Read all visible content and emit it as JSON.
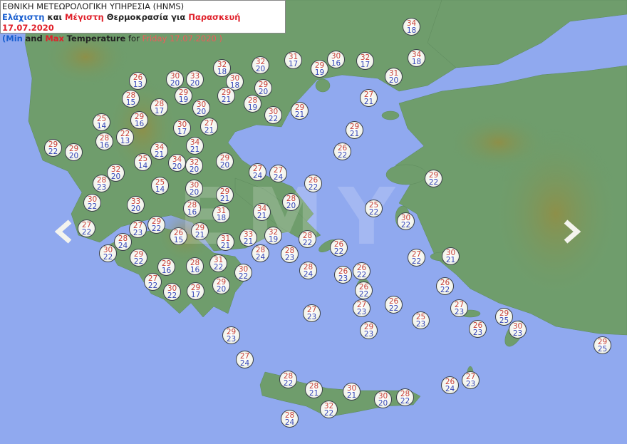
{
  "header": {
    "agency": "ΕΘΝΙΚΗ ΜΕΤΕΩΡΟΛΟΓΙΚΗ ΥΠΗΡΕΣΙΑ (HNMS)",
    "gr_min": "Ελάχιστη",
    "gr_and": "και",
    "gr_max": "Μέγιστη",
    "gr_rest": "Θερμοκρασία για",
    "gr_day": "Παρασκευή 17.07.2020",
    "en_open": "(",
    "en_min": "Min",
    "en_and": "and",
    "en_max": "Max",
    "en_rest": "Temperature",
    "en_for": "for",
    "en_day": "Friday 17.07.2020 )"
  },
  "watermark": "EMY",
  "colors": {
    "max": "#c8423a",
    "min": "#3646b8",
    "sea": "#90a9ef",
    "land": "#6f9d6c"
  },
  "navigation": {
    "prev": "chevron-left-icon",
    "next": "chevron-right-icon"
  },
  "stations": [
    {
      "max": 34,
      "min": 18
    },
    {
      "max": 34,
      "min": 18
    },
    {
      "max": 32,
      "min": 18
    },
    {
      "max": 32,
      "min": 20
    },
    {
      "max": 31,
      "min": 17
    },
    {
      "max": 30,
      "min": 16
    },
    {
      "max": 29,
      "min": 19
    },
    {
      "max": 32,
      "min": 17
    },
    {
      "max": 31,
      "min": 20
    },
    {
      "max": 26,
      "min": 13
    },
    {
      "max": 30,
      "min": 20
    },
    {
      "max": 33,
      "min": 20
    },
    {
      "max": 30,
      "min": 18
    },
    {
      "max": 29,
      "min": 20
    },
    {
      "max": 28,
      "min": 15
    },
    {
      "max": 29,
      "min": 19
    },
    {
      "max": 29,
      "min": 21
    },
    {
      "max": 28,
      "min": 19
    },
    {
      "max": 27,
      "min": 21
    },
    {
      "max": 28,
      "min": 17
    },
    {
      "max": 30,
      "min": 20
    },
    {
      "max": 30,
      "min": 22
    },
    {
      "max": 29,
      "min": 21
    },
    {
      "max": 25,
      "min": 14
    },
    {
      "max": 29,
      "min": 16
    },
    {
      "max": 30,
      "min": 17
    },
    {
      "max": 27,
      "min": 21
    },
    {
      "max": 29,
      "min": 21
    },
    {
      "max": 28,
      "min": 16
    },
    {
      "max": 22,
      "min": 13
    },
    {
      "max": 29,
      "min": 22
    },
    {
      "max": 29,
      "min": 20
    },
    {
      "max": 34,
      "min": 21
    },
    {
      "max": 34,
      "min": 21
    },
    {
      "max": 26,
      "min": 22
    },
    {
      "max": 25,
      "min": 14
    },
    {
      "max": 34,
      "min": 20
    },
    {
      "max": 32,
      "min": 20
    },
    {
      "max": 29,
      "min": 20
    },
    {
      "max": 27,
      "min": 24
    },
    {
      "max": 27,
      "min": 24
    },
    {
      "max": 26,
      "min": 22
    },
    {
      "max": 29,
      "min": 22
    },
    {
      "max": 32,
      "min": 20
    },
    {
      "max": 28,
      "min": 23
    },
    {
      "max": 25,
      "min": 14
    },
    {
      "max": 30,
      "min": 20
    },
    {
      "max": 30,
      "min": 22
    },
    {
      "max": 33,
      "min": 20
    },
    {
      "max": 28,
      "min": 16
    },
    {
      "max": 29,
      "min": 21
    },
    {
      "max": 31,
      "min": 18
    },
    {
      "max": 34,
      "min": 21
    },
    {
      "max": 28,
      "min": 20
    },
    {
      "max": 25,
      "min": 22
    },
    {
      "max": 30,
      "min": 22
    },
    {
      "max": 27,
      "min": 22
    },
    {
      "max": 27,
      "min": 23
    },
    {
      "max": 29,
      "min": 22
    },
    {
      "max": 26,
      "min": 15
    },
    {
      "max": 29,
      "min": 21
    },
    {
      "max": 28,
      "min": 24
    },
    {
      "max": 30,
      "min": 22
    },
    {
      "max": 31,
      "min": 21
    },
    {
      "max": 33,
      "min": 21
    },
    {
      "max": 32,
      "min": 19
    },
    {
      "max": 28,
      "min": 22
    },
    {
      "max": 29,
      "min": 22
    },
    {
      "max": 28,
      "min": 24
    },
    {
      "max": 28,
      "min": 23
    },
    {
      "max": 26,
      "min": 22
    },
    {
      "max": 27,
      "min": 22
    },
    {
      "max": 30,
      "min": 21
    },
    {
      "max": 29,
      "min": 16
    },
    {
      "max": 28,
      "min": 16
    },
    {
      "max": 31,
      "min": 22
    },
    {
      "max": 30,
      "min": 22
    },
    {
      "max": 28,
      "min": 24
    },
    {
      "max": 26,
      "min": 23
    },
    {
      "max": 26,
      "min": 22
    },
    {
      "max": 27,
      "min": 22
    },
    {
      "max": 30,
      "min": 22
    },
    {
      "max": 29,
      "min": 17
    },
    {
      "max": 29,
      "min": 20
    },
    {
      "max": 26,
      "min": 22
    },
    {
      "max": 26,
      "min": 22
    },
    {
      "max": 27,
      "min": 23
    },
    {
      "max": 27,
      "min": 23
    },
    {
      "max": 26,
      "min": 22
    },
    {
      "max": 25,
      "min": 23
    },
    {
      "max": 27,
      "min": 23
    },
    {
      "max": 29,
      "min": 25
    },
    {
      "max": 26,
      "min": 23
    },
    {
      "max": 30,
      "min": 23
    },
    {
      "max": 29,
      "min": 23
    },
    {
      "max": 29,
      "min": 23
    },
    {
      "max": 27,
      "min": 24
    },
    {
      "max": 29,
      "min": 25
    },
    {
      "max": 28,
      "min": 22
    },
    {
      "max": 28,
      "min": 21
    },
    {
      "max": 30,
      "min": 21
    },
    {
      "max": 30,
      "min": 20
    },
    {
      "max": 28,
      "min": 22
    },
    {
      "max": 32,
      "min": 22
    },
    {
      "max": 28,
      "min": 24
    },
    {
      "max": 26,
      "min": 24
    },
    {
      "max": 27,
      "min": 23
    }
  ]
}
